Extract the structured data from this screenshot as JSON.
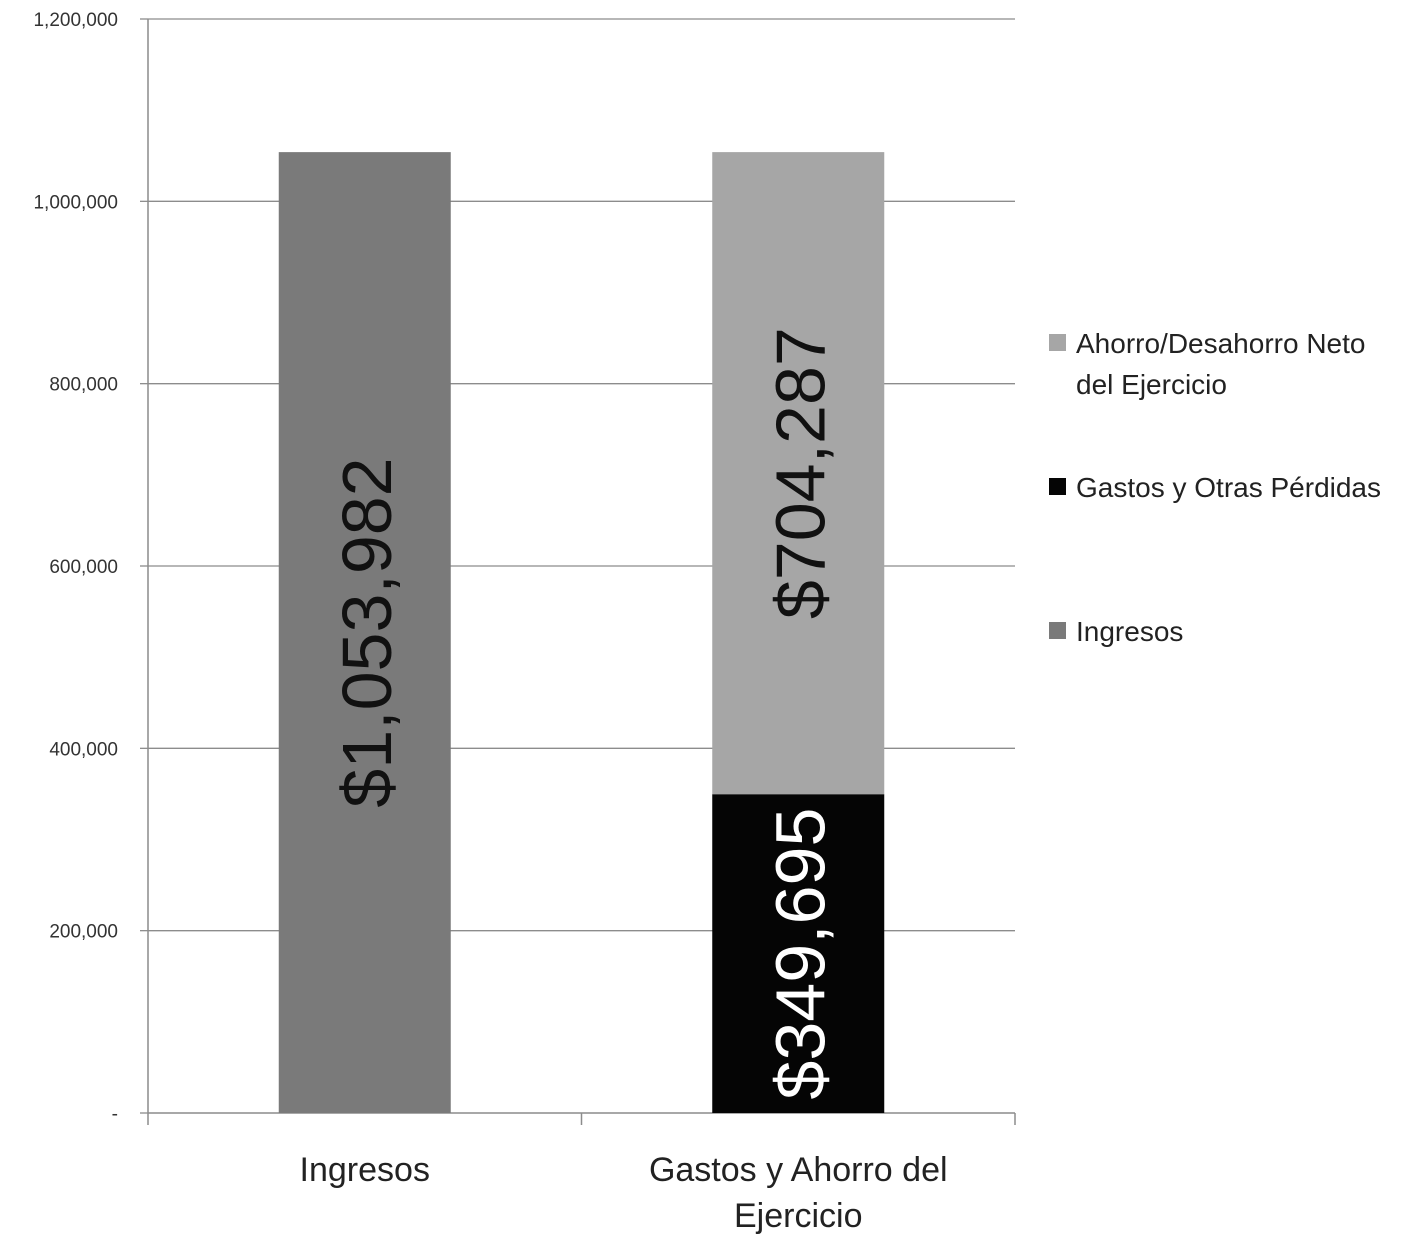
{
  "chart_data": {
    "type": "bar",
    "stacked": true,
    "title": "",
    "xlabel": "",
    "ylabel": "",
    "ylim": [
      0,
      1200000
    ],
    "yticks": [
      {
        "value": 0,
        "label": "-"
      },
      {
        "value": 200000,
        "label": "200,000"
      },
      {
        "value": 400000,
        "label": "400,000"
      },
      {
        "value": 600000,
        "label": "600,000"
      },
      {
        "value": 800000,
        "label": "800,000"
      },
      {
        "value": 1000000,
        "label": "1,000,000"
      },
      {
        "value": 1200000,
        "label": "1,200,000"
      }
    ],
    "grid": true,
    "legend_position": "right",
    "categories": [
      {
        "lines": [
          "Ingresos"
        ]
      },
      {
        "lines": [
          "Gastos y Ahorro del",
          "Ejercicio"
        ]
      }
    ],
    "series": [
      {
        "name": "Ingresos",
        "legend_lines": [
          "Ingresos"
        ],
        "color": "#7a7a7a",
        "label_color": "#111111",
        "values": [
          1053982,
          0
        ],
        "labels": [
          "$1,053,982",
          ""
        ]
      },
      {
        "name": "Gastos y Otras Pérdidas",
        "legend_lines": [
          "Gastos y Otras Pérdidas"
        ],
        "color": "#050505",
        "label_color": "#ffffff",
        "values": [
          0,
          349695
        ],
        "labels": [
          "",
          "$349,695"
        ]
      },
      {
        "name": "Ahorro/Desahorro Neto del Ejercicio",
        "legend_lines": [
          "Ahorro/Desahorro Neto",
          "del Ejercicio"
        ],
        "color": "#a6a6a6",
        "label_color": "#111111",
        "values": [
          0,
          704287
        ],
        "labels": [
          "",
          "$704,287"
        ]
      }
    ],
    "legend_order": [
      2,
      1,
      0
    ]
  }
}
